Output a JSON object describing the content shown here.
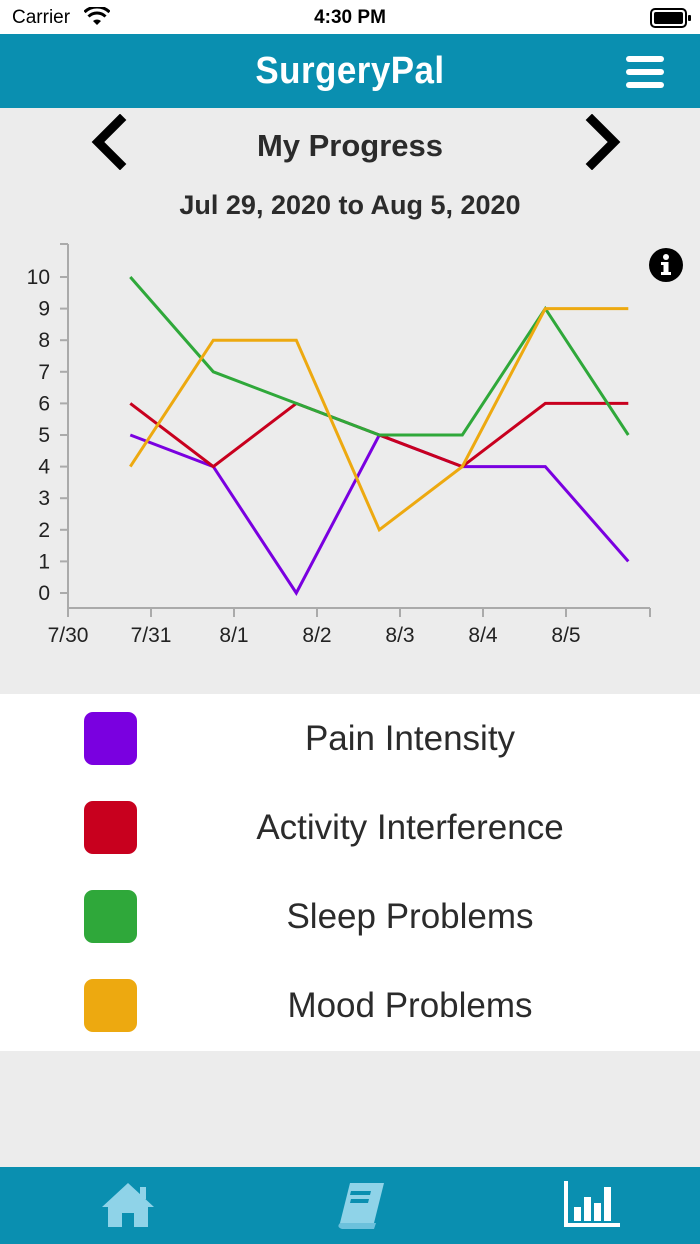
{
  "status_bar": {
    "carrier": "Carrier",
    "time": "4:30 PM",
    "wifi_icon": "wifi-icon",
    "battery_icon": "battery-icon"
  },
  "header": {
    "title": "SurgeryPal",
    "menu_icon": "hamburger-menu-icon"
  },
  "progress": {
    "title": "My Progress",
    "date_range": "Jul 29, 2020 to Aug 5, 2020",
    "prev_icon": "chevron-left-icon",
    "next_icon": "chevron-right-icon",
    "info_icon": "info-icon"
  },
  "chart_data": {
    "type": "line",
    "x_ticks": [
      "7/30",
      "7/31",
      "8/1",
      "8/2",
      "8/3",
      "8/4",
      "8/5"
    ],
    "y_ticks": [
      0,
      1,
      2,
      3,
      4,
      5,
      6,
      7,
      8,
      9,
      10
    ],
    "x": [
      "7/30 18:00",
      "7/31 18:00",
      "8/1 18:00",
      "8/2 18:00",
      "8/3 18:00",
      "8/4 18:00",
      "8/5 18:00"
    ],
    "ylim": [
      0,
      10
    ],
    "series": [
      {
        "name": "Pain Intensity",
        "color": "#7a00e0",
        "values": [
          5,
          4,
          0,
          5,
          4,
          4,
          1
        ]
      },
      {
        "name": "Activity Interference",
        "color": "#c8001e",
        "values": [
          6,
          4,
          6,
          5,
          4,
          6,
          6
        ]
      },
      {
        "name": "Sleep Problems",
        "color": "#2fa83a",
        "values": [
          10,
          7,
          6,
          5,
          5,
          9,
          5
        ]
      },
      {
        "name": "Mood Problems",
        "color": "#eda910",
        "values": [
          4,
          8,
          8,
          2,
          4,
          9,
          9
        ]
      }
    ]
  },
  "legend": [
    {
      "label": "Pain Intensity",
      "color": "#7a00e0"
    },
    {
      "label": "Activity Interference",
      "color": "#c8001e"
    },
    {
      "label": "Sleep Problems",
      "color": "#2fa83a"
    },
    {
      "label": "Mood Problems",
      "color": "#eda910"
    }
  ],
  "tab_bar": {
    "items": [
      {
        "icon": "home-icon"
      },
      {
        "icon": "journal-icon"
      },
      {
        "icon": "bar-chart-icon"
      }
    ]
  },
  "colors": {
    "brand": "#0a8fb0",
    "tab_icon": "#8fd3e8",
    "tab_icon_active": "#ffffff"
  }
}
